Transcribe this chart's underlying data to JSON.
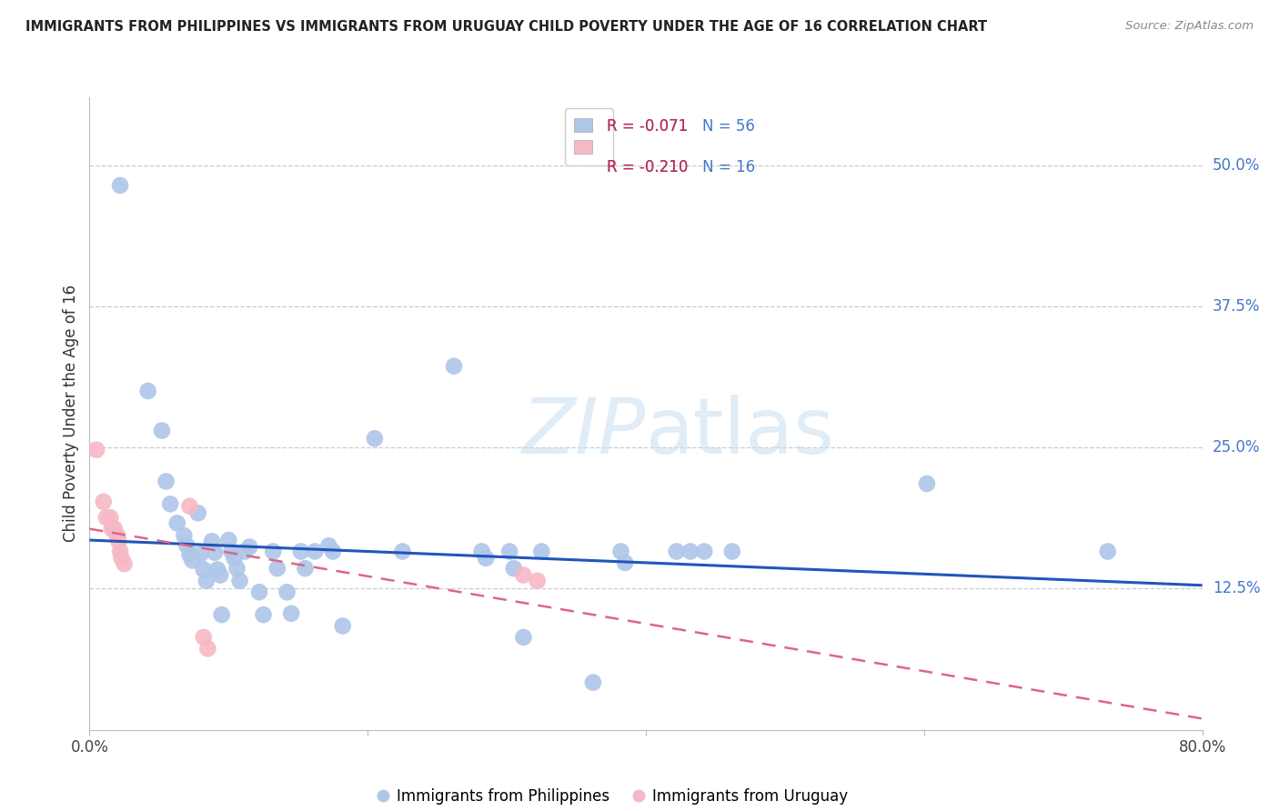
{
  "title": "IMMIGRANTS FROM PHILIPPINES VS IMMIGRANTS FROM URUGUAY CHILD POVERTY UNDER THE AGE OF 16 CORRELATION CHART",
  "source": "Source: ZipAtlas.com",
  "ylabel": "Child Poverty Under the Age of 16",
  "ytick_labels": [
    "50.0%",
    "37.5%",
    "25.0%",
    "12.5%"
  ],
  "ytick_values": [
    0.5,
    0.375,
    0.25,
    0.125
  ],
  "xlim": [
    0.0,
    0.8
  ],
  "ylim": [
    0.0,
    0.56
  ],
  "watermark_part1": "ZIP",
  "watermark_part2": "atlas",
  "legend_blue_r": "R = -0.071",
  "legend_blue_n": "N = 56",
  "legend_pink_r": "R = -0.210",
  "legend_pink_n": "N = 16",
  "legend_blue_label": "Immigrants from Philippines",
  "legend_pink_label": "Immigrants from Uruguay",
  "blue_color": "#aec6e8",
  "pink_color": "#f5b8c4",
  "blue_line_color": "#2255bb",
  "pink_line_color": "#dd6688",
  "text_blue": "#4477cc",
  "text_red": "#cc2244",
  "blue_scatter": [
    [
      0.022,
      0.482
    ],
    [
      0.042,
      0.3
    ],
    [
      0.052,
      0.265
    ],
    [
      0.055,
      0.22
    ],
    [
      0.058,
      0.2
    ],
    [
      0.063,
      0.183
    ],
    [
      0.068,
      0.172
    ],
    [
      0.07,
      0.163
    ],
    [
      0.072,
      0.155
    ],
    [
      0.074,
      0.15
    ],
    [
      0.078,
      0.192
    ],
    [
      0.08,
      0.156
    ],
    [
      0.082,
      0.142
    ],
    [
      0.084,
      0.132
    ],
    [
      0.088,
      0.167
    ],
    [
      0.09,
      0.157
    ],
    [
      0.092,
      0.142
    ],
    [
      0.094,
      0.137
    ],
    [
      0.095,
      0.102
    ],
    [
      0.1,
      0.168
    ],
    [
      0.102,
      0.158
    ],
    [
      0.104,
      0.152
    ],
    [
      0.106,
      0.143
    ],
    [
      0.108,
      0.132
    ],
    [
      0.112,
      0.158
    ],
    [
      0.115,
      0.162
    ],
    [
      0.122,
      0.122
    ],
    [
      0.125,
      0.102
    ],
    [
      0.132,
      0.158
    ],
    [
      0.135,
      0.143
    ],
    [
      0.142,
      0.122
    ],
    [
      0.145,
      0.103
    ],
    [
      0.152,
      0.158
    ],
    [
      0.155,
      0.143
    ],
    [
      0.162,
      0.158
    ],
    [
      0.172,
      0.163
    ],
    [
      0.175,
      0.158
    ],
    [
      0.182,
      0.092
    ],
    [
      0.205,
      0.258
    ],
    [
      0.225,
      0.158
    ],
    [
      0.262,
      0.322
    ],
    [
      0.282,
      0.158
    ],
    [
      0.285,
      0.152
    ],
    [
      0.302,
      0.158
    ],
    [
      0.305,
      0.143
    ],
    [
      0.312,
      0.082
    ],
    [
      0.325,
      0.158
    ],
    [
      0.362,
      0.042
    ],
    [
      0.382,
      0.158
    ],
    [
      0.385,
      0.148
    ],
    [
      0.422,
      0.158
    ],
    [
      0.432,
      0.158
    ],
    [
      0.442,
      0.158
    ],
    [
      0.462,
      0.158
    ],
    [
      0.602,
      0.218
    ],
    [
      0.732,
      0.158
    ]
  ],
  "pink_scatter": [
    [
      0.005,
      0.248
    ],
    [
      0.01,
      0.202
    ],
    [
      0.012,
      0.188
    ],
    [
      0.015,
      0.188
    ],
    [
      0.016,
      0.178
    ],
    [
      0.018,
      0.178
    ],
    [
      0.02,
      0.172
    ],
    [
      0.021,
      0.167
    ],
    [
      0.022,
      0.158
    ],
    [
      0.023,
      0.152
    ],
    [
      0.025,
      0.147
    ],
    [
      0.072,
      0.198
    ],
    [
      0.082,
      0.082
    ],
    [
      0.085,
      0.072
    ],
    [
      0.312,
      0.137
    ],
    [
      0.322,
      0.132
    ]
  ],
  "blue_trend_x": [
    0.0,
    0.8
  ],
  "blue_trend_y": [
    0.168,
    0.128
  ],
  "pink_trend_x": [
    0.0,
    0.8
  ],
  "pink_trend_y": [
    0.178,
    0.01
  ]
}
